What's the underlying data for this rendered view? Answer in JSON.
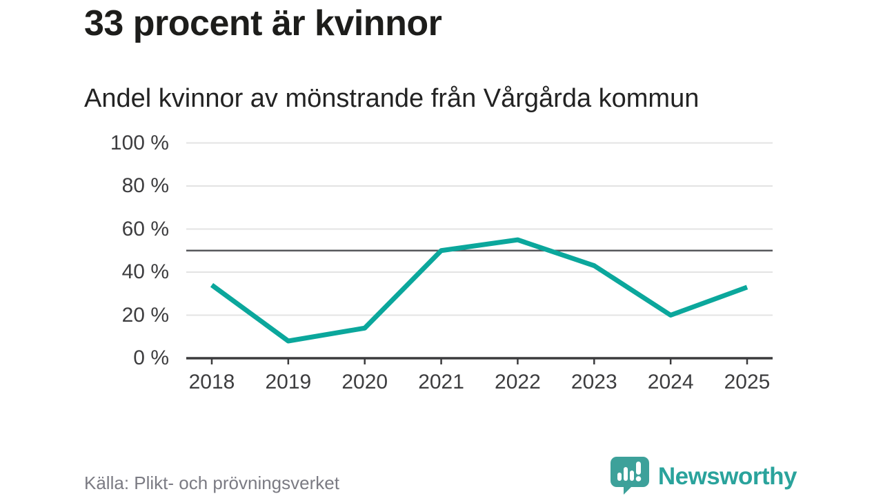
{
  "header": {
    "title": "33 procent är kvinnor",
    "subtitle": "Andel kvinnor av mönstrande från Vårgårda kommun"
  },
  "chart_data": {
    "type": "line",
    "title": "33 procent är kvinnor",
    "subtitle": "Andel kvinnor av mönstrande från Vårgårda kommun",
    "categories": [
      "2018",
      "2019",
      "2020",
      "2021",
      "2022",
      "2023",
      "2024",
      "2025"
    ],
    "series": [
      {
        "name": "Andel kvinnor av mönstrande",
        "values": [
          34,
          8,
          14,
          50,
          55,
          43,
          20,
          33
        ]
      }
    ],
    "xlabel": "",
    "ylabel": "",
    "ylim": [
      0,
      100
    ],
    "yticks": [
      0,
      20,
      40,
      60,
      80,
      100
    ],
    "ytick_suffix": " %",
    "reference_line": 50,
    "grid": "horizontal",
    "legend_position": "none",
    "colors": {
      "line": "#0ba79c",
      "grid": "#e3e3e3",
      "reference": "#56575b",
      "axis": "#3b3b3d",
      "tick_label": "#3d3d3f"
    }
  },
  "footer": {
    "source": "Källa: Plikt- och prövningsverket",
    "brand": {
      "name": "Newsworthy",
      "icon": "newsworthy-speech-bubble-chart-icon",
      "text_color": "#2aa39c",
      "icon_color": "#3da19a"
    }
  }
}
